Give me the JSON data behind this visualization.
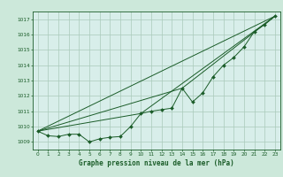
{
  "xlabel": "Graphe pression niveau de la mer (hPa)",
  "background_color": "#cce8da",
  "plot_bg_color": "#d8eeea",
  "grid_color": "#aacaba",
  "line_color": "#1a5c28",
  "ylim": [
    1008.5,
    1017.5
  ],
  "xlim": [
    -0.5,
    23.5
  ],
  "yticks": [
    1009,
    1010,
    1011,
    1012,
    1013,
    1014,
    1015,
    1016,
    1017
  ],
  "xticks": [
    0,
    1,
    2,
    3,
    4,
    5,
    6,
    7,
    8,
    9,
    10,
    11,
    12,
    13,
    14,
    15,
    16,
    17,
    18,
    19,
    20,
    21,
    22,
    23
  ],
  "series1_x": [
    0,
    1,
    2,
    3,
    4,
    5,
    6,
    7,
    8,
    9,
    10,
    11,
    12,
    13,
    14,
    15,
    16,
    17,
    18,
    19,
    20,
    21,
    22,
    23
  ],
  "series1_y": [
    1009.7,
    1009.4,
    1009.35,
    1009.5,
    1009.5,
    1009.0,
    1009.2,
    1009.3,
    1009.35,
    1010.0,
    1010.85,
    1011.0,
    1011.1,
    1011.2,
    1012.5,
    1011.6,
    1012.2,
    1013.25,
    1014.0,
    1014.5,
    1015.2,
    1016.2,
    1016.65,
    1017.2
  ],
  "series2_x": [
    0,
    23
  ],
  "series2_y": [
    1009.7,
    1017.2
  ],
  "series3_x": [
    0,
    14,
    23
  ],
  "series3_y": [
    1009.7,
    1012.5,
    1017.2
  ],
  "series4_x": [
    0,
    10,
    23
  ],
  "series4_y": [
    1009.7,
    1010.85,
    1017.2
  ]
}
